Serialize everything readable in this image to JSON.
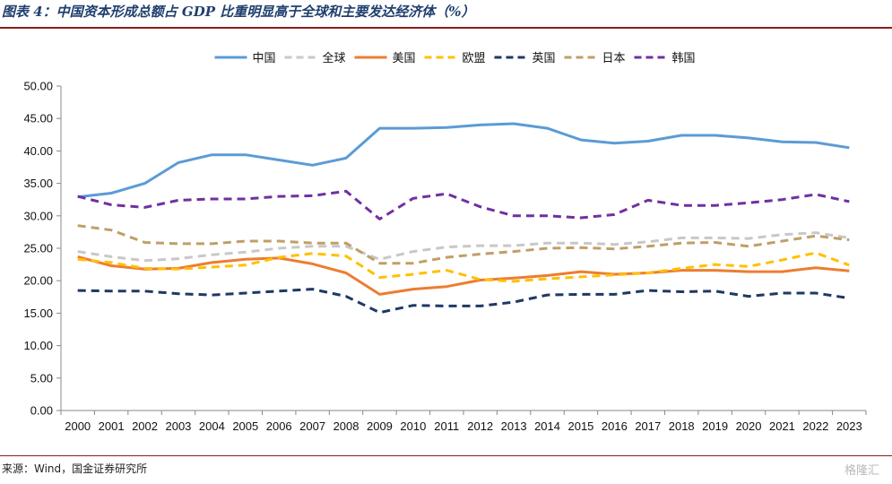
{
  "title": "图表 4：中国资本形成总额占 GDP 比重明显高于全球和主要发达经济体（%）",
  "source": "来源：Wind，国金证券研究所",
  "watermark": "格隆汇",
  "chart_data": {
    "type": "line",
    "x": [
      2000,
      2001,
      2002,
      2003,
      2004,
      2005,
      2006,
      2007,
      2008,
      2009,
      2010,
      2011,
      2012,
      2013,
      2014,
      2015,
      2016,
      2017,
      2018,
      2019,
      2020,
      2021,
      2022,
      2023
    ],
    "x_tick_labels": [
      "2000",
      "2001",
      "2002",
      "2003",
      "2004",
      "2005",
      "2006",
      "2007",
      "2008",
      "2009",
      "2010",
      "2011",
      "2012",
      "2013",
      "2014",
      "2015",
      "2016",
      "2017",
      "2018",
      "2019",
      "2020",
      "2021",
      "2022",
      "2023"
    ],
    "ylim": [
      0,
      50
    ],
    "y_ticks": [
      0,
      5,
      10,
      15,
      20,
      25,
      30,
      35,
      40,
      45,
      50
    ],
    "y_tick_labels": [
      "0.00",
      "5.00",
      "10.00",
      "15.00",
      "20.00",
      "25.00",
      "30.00",
      "35.00",
      "40.00",
      "45.00",
      "50.00"
    ],
    "grid": false,
    "legend_position": "top",
    "series": [
      {
        "name": "中国",
        "color": "#5b9bd5",
        "dash": "solid",
        "values": [
          32.9,
          33.5,
          35.0,
          38.2,
          39.4,
          39.4,
          38.6,
          37.8,
          38.9,
          43.5,
          43.5,
          43.6,
          44.0,
          44.2,
          43.5,
          41.7,
          41.2,
          41.5,
          42.4,
          42.4,
          42.0,
          41.4,
          41.3,
          40.5
        ]
      },
      {
        "name": "全球",
        "color": "#c8c8c8",
        "dash": "dashed",
        "values": [
          24.5,
          23.7,
          23.1,
          23.4,
          24.0,
          24.4,
          25.0,
          25.3,
          25.3,
          23.3,
          24.5,
          25.2,
          25.4,
          25.4,
          25.8,
          25.8,
          25.6,
          26.0,
          26.6,
          26.6,
          26.5,
          27.1,
          27.4,
          26.6
        ]
      },
      {
        "name": "美国",
        "color": "#ed7d31",
        "dash": "solid",
        "values": [
          23.7,
          22.3,
          21.8,
          21.9,
          22.8,
          23.3,
          23.5,
          22.6,
          21.2,
          17.9,
          18.7,
          19.1,
          20.1,
          20.4,
          20.8,
          21.4,
          21.0,
          21.2,
          21.6,
          21.6,
          21.4,
          21.4,
          22.0,
          21.5
        ]
      },
      {
        "name": "欧盟",
        "color": "#ffc000",
        "dash": "dashed",
        "values": [
          23.3,
          22.8,
          21.9,
          21.8,
          22.1,
          22.4,
          23.6,
          24.2,
          23.8,
          20.5,
          21.0,
          21.6,
          20.2,
          19.9,
          20.3,
          20.6,
          20.9,
          21.2,
          21.9,
          22.5,
          22.2,
          23.2,
          24.3,
          22.4
        ]
      },
      {
        "name": "英国",
        "color": "#1f3864",
        "dash": "dashed",
        "values": [
          18.5,
          18.4,
          18.4,
          18.0,
          17.8,
          18.1,
          18.4,
          18.7,
          17.6,
          15.1,
          16.2,
          16.1,
          16.1,
          16.7,
          17.8,
          17.9,
          17.9,
          18.5,
          18.3,
          18.4,
          17.6,
          18.1,
          18.1,
          17.3
        ]
      },
      {
        "name": "日本",
        "color": "#bf9f66",
        "dash": "dashed",
        "values": [
          28.5,
          27.8,
          25.9,
          25.7,
          25.7,
          26.1,
          26.1,
          25.8,
          25.8,
          22.7,
          22.7,
          23.6,
          24.1,
          24.5,
          25.0,
          25.1,
          24.9,
          25.3,
          25.8,
          25.9,
          25.3,
          26.1,
          26.9,
          26.3
        ]
      },
      {
        "name": "韩国",
        "color": "#7030a0",
        "dash": "dashed",
        "values": [
          33.0,
          31.7,
          31.3,
          32.4,
          32.6,
          32.6,
          33.0,
          33.1,
          33.8,
          29.5,
          32.7,
          33.4,
          31.4,
          30.0,
          30.0,
          29.7,
          30.2,
          32.4,
          31.6,
          31.6,
          32.0,
          32.5,
          33.3,
          32.2
        ]
      }
    ]
  }
}
